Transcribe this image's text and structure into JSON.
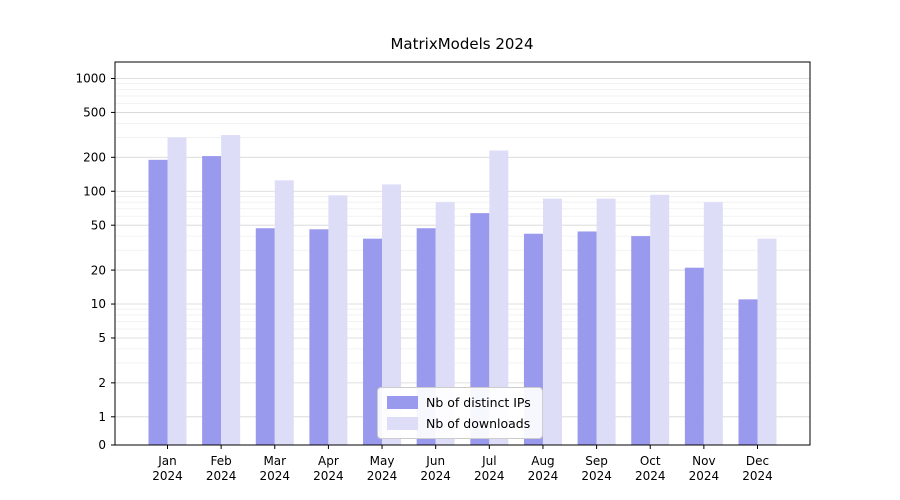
{
  "title": "MatrixModels 2024",
  "chart_data": {
    "type": "bar",
    "title": "MatrixModels 2024",
    "categories": [
      "Jan",
      "Feb",
      "Mar",
      "Apr",
      "May",
      "Jun",
      "Jul",
      "Aug",
      "Sep",
      "Oct",
      "Nov",
      "Dec"
    ],
    "year": "2024",
    "series": [
      {
        "name": "Nb of distinct IPs",
        "color": "#9999ee",
        "values": [
          190,
          205,
          47,
          46,
          38,
          47,
          64,
          42,
          44,
          40,
          21,
          11
        ]
      },
      {
        "name": "Nb of downloads",
        "color": "#ddddf8",
        "values": [
          300,
          315,
          125,
          92,
          115,
          80,
          230,
          86,
          86,
          93,
          80,
          38
        ]
      }
    ],
    "xlabel": "",
    "ylabel": "",
    "yscale": "symlog",
    "yticks": [
      0,
      1,
      2,
      5,
      10,
      20,
      50,
      100,
      200,
      500,
      1000
    ],
    "ylim": [
      0,
      1400
    ],
    "grid": true,
    "legend_position": "lower center"
  }
}
